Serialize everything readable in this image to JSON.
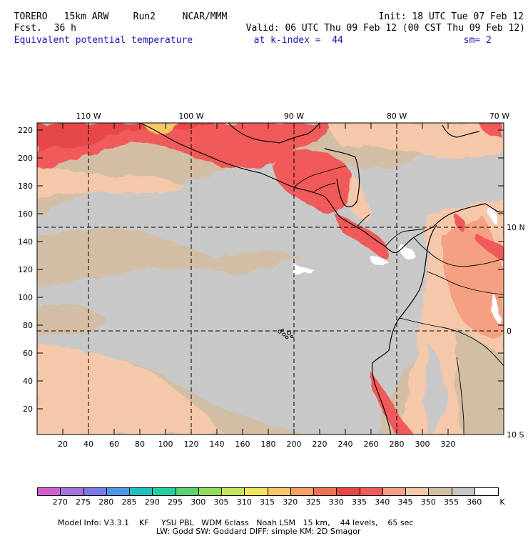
{
  "header": {
    "model": "TORERO",
    "resolution": "15km ARW",
    "run": "Run2",
    "center": "NCAR/MMM",
    "init": "Init: 18 UTC Tue 07 Feb 12",
    "fcst_label": "Fcst.",
    "fcst_value": "36 h",
    "valid": "Valid: 06 UTC Thu 09 Feb 12 (00 CST Thu 09 Feb 12)",
    "field": "Equivalent potential temperature",
    "level": "at k-index =  44",
    "smoothing": "sm= 2"
  },
  "map": {
    "lon_labels": [
      "110 W",
      "100 W",
      "90 W",
      "80 W",
      "70 W"
    ],
    "lat_labels": [
      "10 N",
      "0",
      "10 S"
    ],
    "x_ticks": [
      "20",
      "40",
      "60",
      "80",
      "100",
      "120",
      "140",
      "160",
      "180",
      "200",
      "220",
      "240",
      "260",
      "280",
      "300",
      "320"
    ],
    "y_ticks": [
      "220",
      "200",
      "180",
      "160",
      "140",
      "120",
      "100",
      "80",
      "60",
      "40",
      "20"
    ]
  },
  "colorbar": {
    "unit": "K",
    "labels": [
      "270",
      "275",
      "280",
      "285",
      "290",
      "295",
      "300",
      "305",
      "310",
      "315",
      "320",
      "325",
      "330",
      "335",
      "340",
      "345",
      "350",
      "355",
      "360"
    ],
    "colors": [
      "#d25fd2",
      "#a675dc",
      "#7a7ae6",
      "#4c9ae8",
      "#21c0c0",
      "#21d2a0",
      "#5ad26e",
      "#93dc5a",
      "#c8e65a",
      "#f0e65a",
      "#f5c864",
      "#f5a064",
      "#f07050",
      "#e64646",
      "#f05a5a",
      "#f5a082",
      "#f5c8aa",
      "#d2bea5",
      "#c8c8c8",
      "#ffffff"
    ]
  },
  "footer": {
    "line1": "Model Info: V3.3.1    KF     YSU PBL   WDM 6class   Noah LSM   15 km,    44 levels,    65 sec",
    "line2": "LW: Godd SW: Goddard DIFF: simple KM: 2D Smagor"
  }
}
